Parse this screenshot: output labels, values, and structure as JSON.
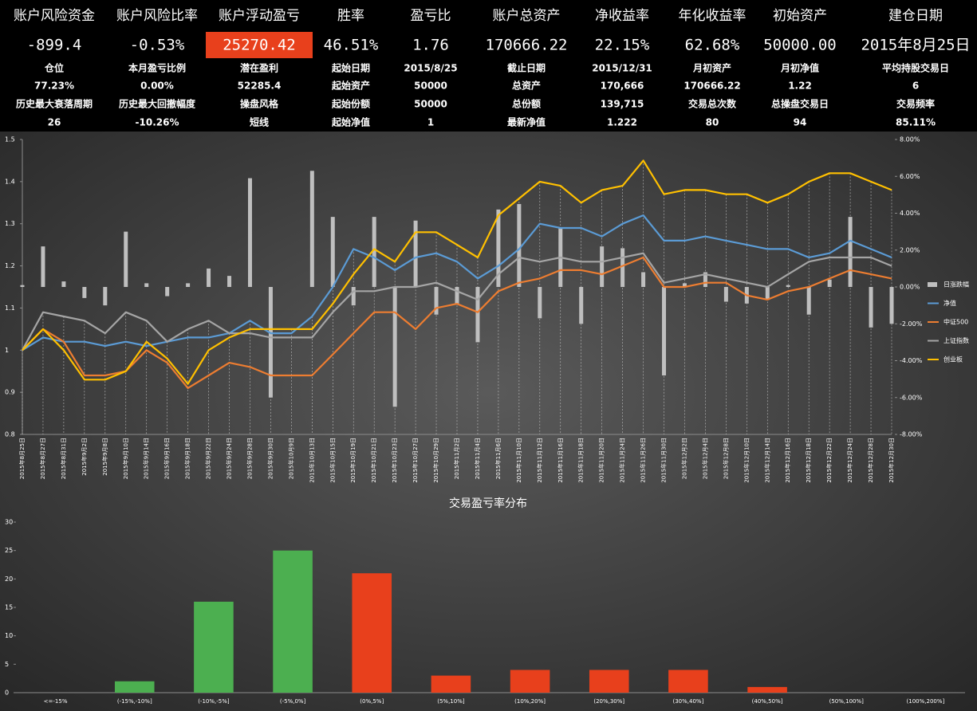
{
  "stats": {
    "rows": [
      [
        "账户风险资金",
        "账户风险比率",
        "账户浮动盈亏",
        "胜率",
        "盈亏比",
        "账户总资产",
        "净收益率",
        "年化收益率",
        "初始资产",
        "建仓日期"
      ],
      [
        "-899.4",
        "-0.53%",
        "25270.42",
        "46.51%",
        "1.76",
        "170666.22",
        "22.15%",
        "62.68%",
        "50000.00",
        "2015年8月25日"
      ],
      [
        "仓位",
        "本月盈亏比例",
        "潜在盈利",
        "起始日期",
        "2015/8/25",
        "截止日期",
        "2015/12/31",
        "月初资产",
        "月初净值",
        "平均持股交易日"
      ],
      [
        "77.23%",
        "0.00%",
        "52285.4",
        "起始资产",
        "50000",
        "总资产",
        "170,666",
        "170666.22",
        "1.22",
        "6"
      ],
      [
        "历史最大衰落周期",
        "历史最大回撤幅度",
        "操盘风格",
        "起始份额",
        "50000",
        "总份额",
        "139,715",
        "交易总次数",
        "总操盘交易日",
        "交易频率"
      ],
      [
        "26",
        "-10.26%",
        "短线",
        "起始净值",
        "1",
        "最新净值",
        "1.222",
        "80",
        "94",
        "85.11%"
      ]
    ]
  },
  "chart_data": [
    {
      "type": "line",
      "categories": [
        "2015年8月25日",
        "2015年8月27日",
        "2015年8月31日",
        "2015年9月2日",
        "2015年9月8日",
        "2015年9月10日",
        "2015年9月14日",
        "2015年9月16日",
        "2015年9月18日",
        "2015年9月22日",
        "2015年9月24日",
        "2015年9月28日",
        "2015年9月30日",
        "2015年10月9日",
        "2015年10月13日",
        "2015年10月15日",
        "2015年10月19日",
        "2015年10月21日",
        "2015年10月23日",
        "2015年10月27日",
        "2015年10月29日",
        "2015年11月2日",
        "2015年11月4日",
        "2015年11月6日",
        "2015年11月10日",
        "2015年11月12日",
        "2015年11月16日",
        "2015年11月18日",
        "2015年11月20日",
        "2015年11月24日",
        "2015年11月26日",
        "2015年11月30日",
        "2015年12月2日",
        "2015年12月4日",
        "2015年12月8日",
        "2015年12月10日",
        "2015年12月14日",
        "2015年12月16日",
        "2015年12月18日",
        "2015年12月22日",
        "2015年12月24日",
        "2015年12月28日",
        "2015年12月30日"
      ],
      "series": [
        {
          "name": "日涨跌幅",
          "type": "bar",
          "axis": "y2",
          "color": "#bfbfbf",
          "values": [
            0.1,
            2.2,
            0.3,
            -0.6,
            -1.0,
            3.0,
            0.2,
            -0.5,
            0.2,
            1.0,
            0.6,
            5.9,
            -6.0,
            0.0,
            6.3,
            3.8,
            -1.0,
            3.8,
            -6.5,
            3.6,
            -1.5,
            -0.9,
            -3.0,
            4.2,
            4.5,
            -1.7,
            3.2,
            -2.0,
            2.2,
            2.1,
            0.8,
            -4.8,
            0.2,
            0.8,
            -0.8,
            -0.9,
            -0.7,
            0.1,
            -1.5,
            0.4,
            3.8,
            -2.2,
            -2.0
          ]
        },
        {
          "name": "净值",
          "color": "#5b9bd5",
          "values": [
            1.0,
            1.03,
            1.02,
            1.02,
            1.01,
            1.02,
            1.01,
            1.02,
            1.03,
            1.03,
            1.04,
            1.07,
            1.04,
            1.04,
            1.08,
            1.15,
            1.24,
            1.22,
            1.19,
            1.22,
            1.23,
            1.21,
            1.17,
            1.2,
            1.24,
            1.3,
            1.29,
            1.29,
            1.27,
            1.3,
            1.32,
            1.26,
            1.26,
            1.27,
            1.26,
            1.25,
            1.24,
            1.24,
            1.22,
            1.23,
            1.26,
            1.24,
            1.22
          ]
        },
        {
          "name": "中证500",
          "color": "#ed7d31",
          "values": [
            1.0,
            1.05,
            1.02,
            0.94,
            0.94,
            0.95,
            1.0,
            0.97,
            0.91,
            0.94,
            0.97,
            0.96,
            0.94,
            0.94,
            0.94,
            0.99,
            1.04,
            1.09,
            1.09,
            1.05,
            1.1,
            1.11,
            1.09,
            1.14,
            1.16,
            1.17,
            1.19,
            1.19,
            1.18,
            1.2,
            1.22,
            1.15,
            1.15,
            1.16,
            1.16,
            1.13,
            1.12,
            1.14,
            1.15,
            1.17,
            1.19,
            1.18,
            1.17
          ]
        },
        {
          "name": "上证指数",
          "color": "#a5a5a5",
          "values": [
            1.0,
            1.09,
            1.08,
            1.07,
            1.04,
            1.09,
            1.07,
            1.02,
            1.05,
            1.07,
            1.04,
            1.04,
            1.03,
            1.03,
            1.03,
            1.09,
            1.14,
            1.14,
            1.15,
            1.15,
            1.16,
            1.14,
            1.12,
            1.18,
            1.22,
            1.21,
            1.22,
            1.21,
            1.21,
            1.22,
            1.23,
            1.16,
            1.17,
            1.18,
            1.17,
            1.16,
            1.15,
            1.18,
            1.21,
            1.22,
            1.22,
            1.22,
            1.2
          ]
        },
        {
          "name": "创业板",
          "color": "#ffc000",
          "values": [
            1.0,
            1.05,
            1.0,
            0.93,
            0.93,
            0.95,
            1.02,
            0.98,
            0.92,
            1.0,
            1.03,
            1.05,
            1.05,
            1.05,
            1.05,
            1.11,
            1.18,
            1.24,
            1.21,
            1.28,
            1.28,
            1.25,
            1.22,
            1.32,
            1.36,
            1.4,
            1.39,
            1.35,
            1.38,
            1.39,
            1.45,
            1.37,
            1.38,
            1.38,
            1.37,
            1.37,
            1.35,
            1.37,
            1.4,
            1.42,
            1.42,
            1.4,
            1.38
          ]
        }
      ],
      "ylim": [
        0.8,
        1.5
      ],
      "yticks": [
        0.8,
        0.9,
        1,
        1.1,
        1.2,
        1.3,
        1.4,
        1.5
      ],
      "y2lim": [
        -8,
        8
      ],
      "y2ticks": [
        {
          "value": -8,
          "label": "-8.00%"
        },
        {
          "value": -6,
          "label": "-6.00%"
        },
        {
          "value": -4,
          "label": "-4.00%"
        },
        {
          "value": -2,
          "label": "-2.00%"
        },
        {
          "value": 0,
          "label": "0.00%"
        },
        {
          "value": 2,
          "label": "2.00%"
        },
        {
          "value": 4,
          "label": "4.00%"
        },
        {
          "value": 6,
          "label": "6.00%"
        },
        {
          "value": 8,
          "label": "8.00%"
        }
      ],
      "legend": "right"
    },
    {
      "type": "bar",
      "title": "交易盈亏率分布",
      "categories": [
        "<=-15%",
        "(-15%,-10%]",
        "(-10%,-5%]",
        "(-5%,0%]",
        "(0%,5%]",
        "(5%,10%]",
        "(10%,20%]",
        "(20%,30%]",
        "(30%,40%]",
        "(40%,50%]",
        "(50%,100%]",
        "(100%,200%]"
      ],
      "values": [
        0,
        2,
        16,
        25,
        21,
        3,
        4,
        4,
        4,
        1,
        0,
        0
      ],
      "colors": [
        "#4caf50",
        "#4caf50",
        "#4caf50",
        "#4caf50",
        "#e8401c",
        "#e8401c",
        "#e8401c",
        "#e8401c",
        "#e8401c",
        "#e8401c",
        "#e8401c",
        "#e8401c"
      ],
      "ylim": [
        0,
        30
      ],
      "yticks": [
        0,
        5,
        10,
        15,
        20,
        25,
        30
      ]
    }
  ]
}
